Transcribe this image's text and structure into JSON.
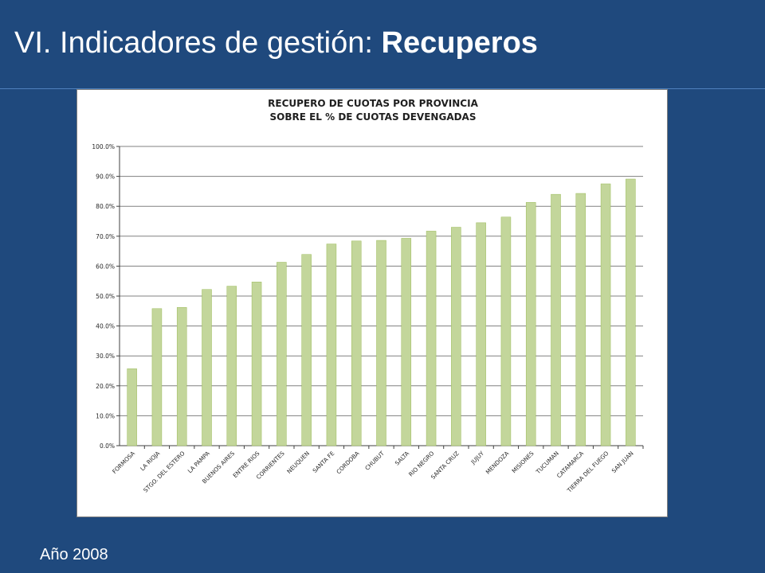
{
  "slide": {
    "title_regular": "VI. Indicadores de gestión: ",
    "title_bold": "Recuperos",
    "footer": "Año 2008"
  },
  "colors": {
    "background": "#1f497d",
    "bar": "#c3d69b",
    "bar_stroke": "#9bbb59",
    "axis": "#404040"
  },
  "chart_data": {
    "type": "bar",
    "title_line1": "RECUPERO DE CUOTAS POR PROVINCIA",
    "title_line2": "SOBRE EL % DE CUOTAS DEVENGADAS",
    "xlabel": "",
    "ylabel": "",
    "ylim": [
      0,
      100
    ],
    "y_ticks": [
      "0.0%",
      "10.0%",
      "20.0%",
      "30.0%",
      "40.0%",
      "50.0%",
      "60.0%",
      "70.0%",
      "80.0%",
      "90.0%",
      "100.0%"
    ],
    "grid": "horizontal",
    "legend": "none",
    "categories": [
      "FORMOSA",
      "LA RIOJA",
      "STGO. DEL ESTERO",
      "LA PAMPA",
      "BUENOS AIRES",
      "ENTRE RIOS",
      "CORRIENTES",
      "NEUQUEN",
      "SANTA FE",
      "CORDOBA",
      "CHUBUT",
      "SALTA",
      "RIO NEGRO",
      "SANTA CRUZ",
      "JUJUY",
      "MENDOZA",
      "MISIONES",
      "TUCUMAN",
      "CATAMARCA",
      "TIERRA DEL FUEGO",
      "SAN JUAN"
    ],
    "values": [
      25.7,
      45.8,
      46.2,
      52.2,
      53.3,
      54.7,
      61.3,
      63.9,
      67.4,
      68.4,
      68.6,
      69.3,
      71.7,
      73.0,
      74.5,
      76.4,
      81.3,
      84.0,
      84.3,
      87.5,
      89.1
    ]
  }
}
